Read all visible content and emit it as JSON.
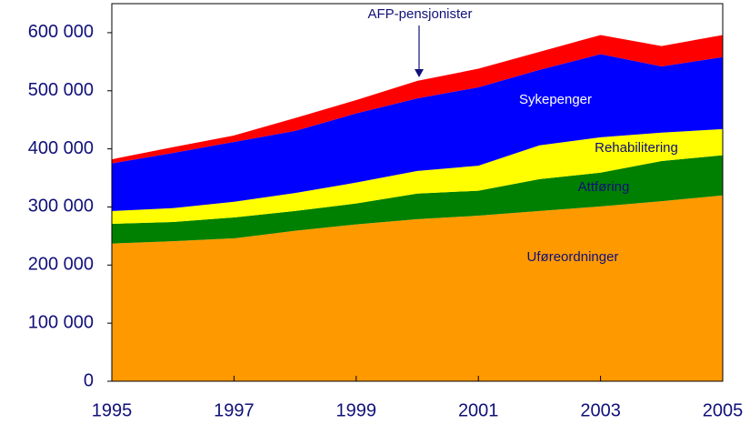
{
  "chart_data": {
    "type": "stacked-area",
    "annotation": "AFP-pensjonister",
    "x": [
      1995,
      1996,
      1997,
      1998,
      1999,
      2000,
      2001,
      2002,
      2003,
      2004,
      2005
    ],
    "xlim": [
      1995,
      2005
    ],
    "xticks": [
      1995,
      1997,
      1999,
      2001,
      2003,
      2005
    ],
    "ylim": [
      0,
      650000
    ],
    "yticks": [
      0,
      {
        "value": 100000,
        "label": "100 000"
      },
      {
        "value": 200000,
        "label": "200 000"
      },
      {
        "value": 300000,
        "label": "300 000"
      },
      {
        "value": 400000,
        "label": "400 000"
      },
      {
        "value": 500000,
        "label": "500 000"
      },
      {
        "value": 600000,
        "label": "600 000"
      }
    ],
    "series": [
      {
        "name": "Uføreordninger",
        "color": "#ff9900",
        "values": [
          237000,
          241000,
          246000,
          259000,
          270000,
          279000,
          285000,
          293000,
          301000,
          310000,
          320000
        ]
      },
      {
        "name": "Attføring",
        "color": "#008000",
        "values": [
          34000,
          33000,
          36000,
          34000,
          36000,
          44000,
          43000,
          55000,
          58000,
          69000,
          69000
        ]
      },
      {
        "name": "Rehabilitering",
        "color": "#ffff00",
        "values": [
          22000,
          24000,
          27000,
          31000,
          36000,
          39000,
          43000,
          58000,
          61000,
          49000,
          45000
        ]
      },
      {
        "name": "Sykepenger",
        "color": "#0000ff",
        "values": [
          82000,
          95000,
          103000,
          107000,
          119000,
          125000,
          135000,
          130000,
          143000,
          114000,
          124000
        ]
      },
      {
        "name": "AFP-pensjonister",
        "color": "#ff0000",
        "values": [
          7000,
          10000,
          11000,
          22000,
          23000,
          30000,
          32000,
          31000,
          33000,
          35000,
          38000
        ]
      }
    ]
  }
}
